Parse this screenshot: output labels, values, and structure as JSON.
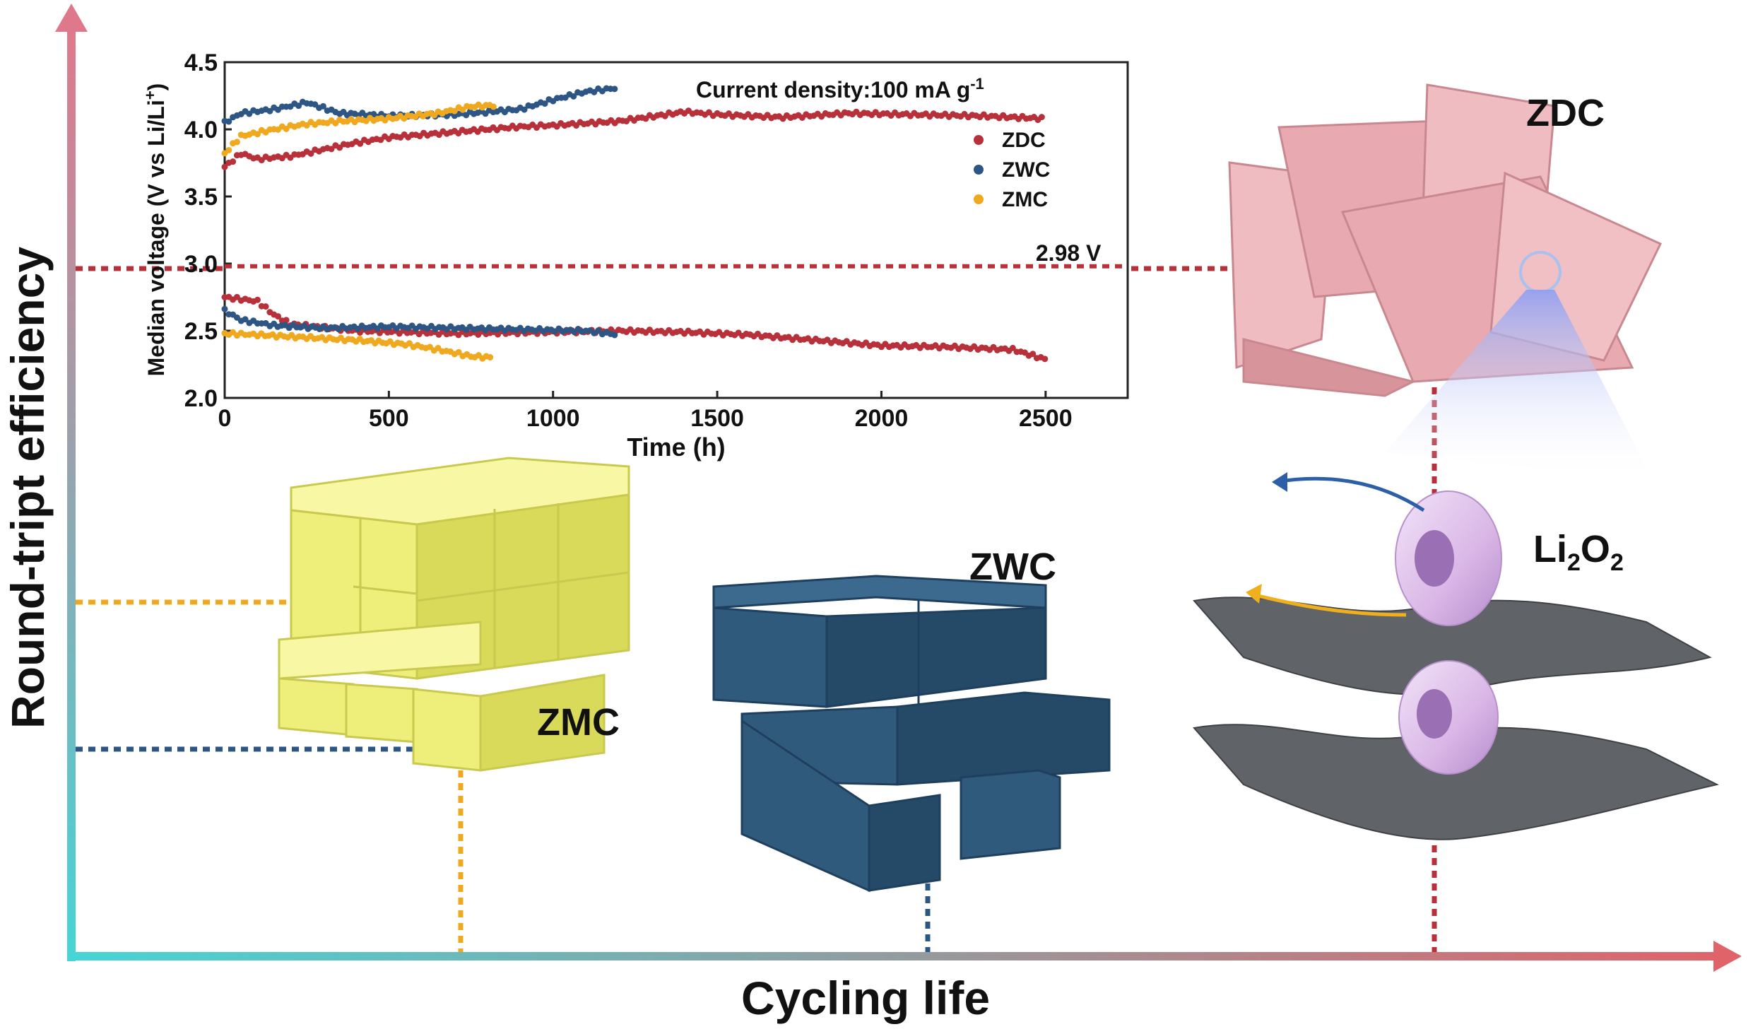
{
  "axes": {
    "y_label": "Round-tript efficiency",
    "x_label": "Cycling life"
  },
  "materials": {
    "zdc": "ZDC",
    "zwc": "ZWC",
    "zmc": "ZMC",
    "li2o2": {
      "base1": "Li",
      "sub1": "2",
      "base2": "O",
      "sub2": "2"
    }
  },
  "colors": {
    "zdc": "#b8303a",
    "zwc": "#2d5684",
    "zmc": "#f0a81e",
    "zdc_block": "#e8aab0",
    "zwc_block": "#2f5a7c",
    "zmc_block": "#eeee7a",
    "torus": "#d9b6e6",
    "sheet": "#606468"
  },
  "chart_data": {
    "type": "scatter",
    "xlabel": "Time (h)",
    "ylabel_parts": {
      "main": "Median voltage (V vs Li/Li",
      "sup": "+",
      "close": ")"
    },
    "annotation_parts": {
      "main": "Current density:100 mA g",
      "sup": "-1"
    },
    "reference_line": {
      "y": 2.98,
      "label": "2.98 V"
    },
    "xlim": [
      0,
      2750
    ],
    "ylim": [
      2.0,
      4.5
    ],
    "xticks": [
      0,
      500,
      1000,
      1500,
      2000,
      2500
    ],
    "yticks": [
      2.0,
      2.5,
      3.0,
      3.5,
      4.0,
      4.5
    ],
    "xtick_labels": [
      "0",
      "500",
      "1000",
      "1500",
      "2000",
      "2500"
    ],
    "ytick_labels": [
      "2.0",
      "2.5",
      "3.0",
      "3.5",
      "4.0",
      "4.5"
    ],
    "legend_placement": "right",
    "series": [
      {
        "name": "ZDC",
        "color": "#b8303a",
        "charge": [
          [
            0,
            3.72
          ],
          [
            50,
            3.82
          ],
          [
            100,
            3.78
          ],
          [
            200,
            3.8
          ],
          [
            300,
            3.85
          ],
          [
            400,
            3.9
          ],
          [
            500,
            3.94
          ],
          [
            700,
            3.98
          ],
          [
            900,
            4.02
          ],
          [
            1000,
            4.03
          ],
          [
            1200,
            4.06
          ],
          [
            1400,
            4.13
          ],
          [
            1500,
            4.11
          ],
          [
            1700,
            4.09
          ],
          [
            1900,
            4.12
          ],
          [
            2100,
            4.11
          ],
          [
            2300,
            4.1
          ],
          [
            2500,
            4.08
          ]
        ],
        "discharge": [
          [
            0,
            2.75
          ],
          [
            100,
            2.72
          ],
          [
            150,
            2.62
          ],
          [
            200,
            2.55
          ],
          [
            400,
            2.5
          ],
          [
            700,
            2.48
          ],
          [
            1000,
            2.49
          ],
          [
            1200,
            2.5
          ],
          [
            1400,
            2.49
          ],
          [
            1600,
            2.47
          ],
          [
            1800,
            2.43
          ],
          [
            2000,
            2.39
          ],
          [
            2200,
            2.38
          ],
          [
            2400,
            2.36
          ],
          [
            2510,
            2.28
          ]
        ]
      },
      {
        "name": "ZWC",
        "color": "#2d5684",
        "charge": [
          [
            0,
            4.05
          ],
          [
            50,
            4.12
          ],
          [
            150,
            4.15
          ],
          [
            250,
            4.2
          ],
          [
            350,
            4.12
          ],
          [
            500,
            4.1
          ],
          [
            700,
            4.11
          ],
          [
            900,
            4.15
          ],
          [
            1000,
            4.22
          ],
          [
            1100,
            4.28
          ],
          [
            1200,
            4.31
          ]
        ],
        "discharge": [
          [
            0,
            2.65
          ],
          [
            50,
            2.58
          ],
          [
            150,
            2.54
          ],
          [
            300,
            2.52
          ],
          [
            500,
            2.53
          ],
          [
            700,
            2.52
          ],
          [
            900,
            2.51
          ],
          [
            1100,
            2.5
          ],
          [
            1200,
            2.47
          ]
        ]
      },
      {
        "name": "ZMC",
        "color": "#f0a81e",
        "charge": [
          [
            0,
            3.82
          ],
          [
            50,
            3.95
          ],
          [
            150,
            4.0
          ],
          [
            250,
            4.04
          ],
          [
            350,
            4.06
          ],
          [
            500,
            4.08
          ],
          [
            650,
            4.12
          ],
          [
            750,
            4.17
          ],
          [
            830,
            4.18
          ]
        ],
        "discharge": [
          [
            0,
            2.48
          ],
          [
            100,
            2.47
          ],
          [
            250,
            2.45
          ],
          [
            400,
            2.43
          ],
          [
            550,
            2.4
          ],
          [
            650,
            2.36
          ],
          [
            750,
            2.31
          ],
          [
            820,
            2.3
          ]
        ]
      }
    ]
  }
}
